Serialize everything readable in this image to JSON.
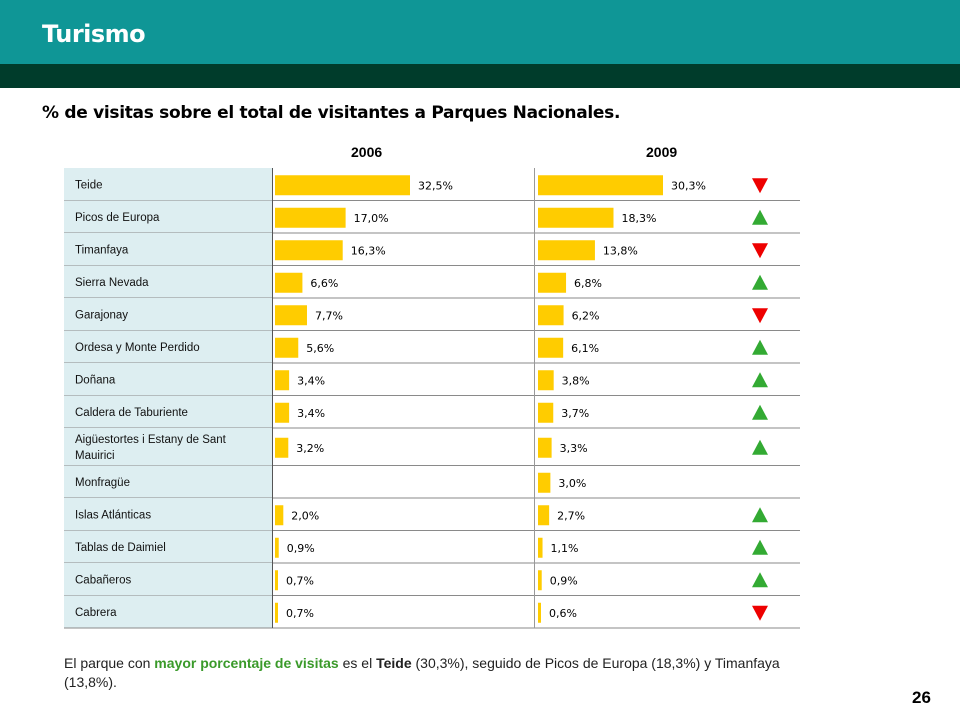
{
  "header": {
    "title": "Turismo"
  },
  "subtitle": "% de visitas sobre el total de visitantes a Parques Nacionales.",
  "chart_data": {
    "type": "bar",
    "orientation": "horizontal",
    "categories": [
      "Teide",
      "Picos de Europa",
      "Timanfaya",
      "Sierra Nevada",
      "Garajonay",
      "Ordesa y Monte Perdido",
      "Doñana",
      "Caldera de Taburiente",
      "Aigüestortes i Estany de Sant Mauirici",
      "Monfragüe",
      "Islas Atlánticas",
      "Tablas de Daimiel",
      "Cabañeros",
      "Cabrera"
    ],
    "series": [
      {
        "name": "2006",
        "values": [
          32.5,
          17.0,
          16.3,
          6.6,
          7.7,
          5.6,
          3.4,
          3.4,
          3.2,
          null,
          2.0,
          0.9,
          0.7,
          0.7
        ],
        "labels": [
          "32,5%",
          "17,0%",
          "16,3%",
          "6,6%",
          "7,7%",
          "5,6%",
          "3,4%",
          "3,4%",
          "3,2%",
          "",
          "2,0%",
          "0,9%",
          "0,7%",
          "0,7%"
        ]
      },
      {
        "name": "2009",
        "values": [
          30.3,
          18.3,
          13.8,
          6.8,
          6.2,
          6.1,
          3.8,
          3.7,
          3.3,
          3.0,
          2.7,
          1.1,
          0.9,
          0.6
        ],
        "labels": [
          "30,3%",
          "18,3%",
          "13,8%",
          "6,8%",
          "6,2%",
          "6,1%",
          "3,8%",
          "3,7%",
          "3,3%",
          "3,0%",
          "2,7%",
          "1,1%",
          "0,9%",
          "0,6%"
        ]
      }
    ],
    "trend": [
      "down",
      "up",
      "down",
      "up",
      "down",
      "up",
      "up",
      "up",
      "up",
      "",
      "up",
      "up",
      "up",
      "down"
    ],
    "xlim": [
      0,
      35
    ],
    "colors": {
      "bar": "#ffcc00",
      "up": "#33aa33",
      "down": "#ee0000",
      "label_bg": "#ddeef1"
    }
  },
  "footnote": {
    "p1": "El parque con ",
    "highlight": "mayor porcentaje de visitas",
    "p2": " es el ",
    "park": "Teide",
    "p3": " (30,3%), seguido de Picos de Europa (18,3%) y Timanfaya (13,8%)."
  },
  "page_number": "26"
}
